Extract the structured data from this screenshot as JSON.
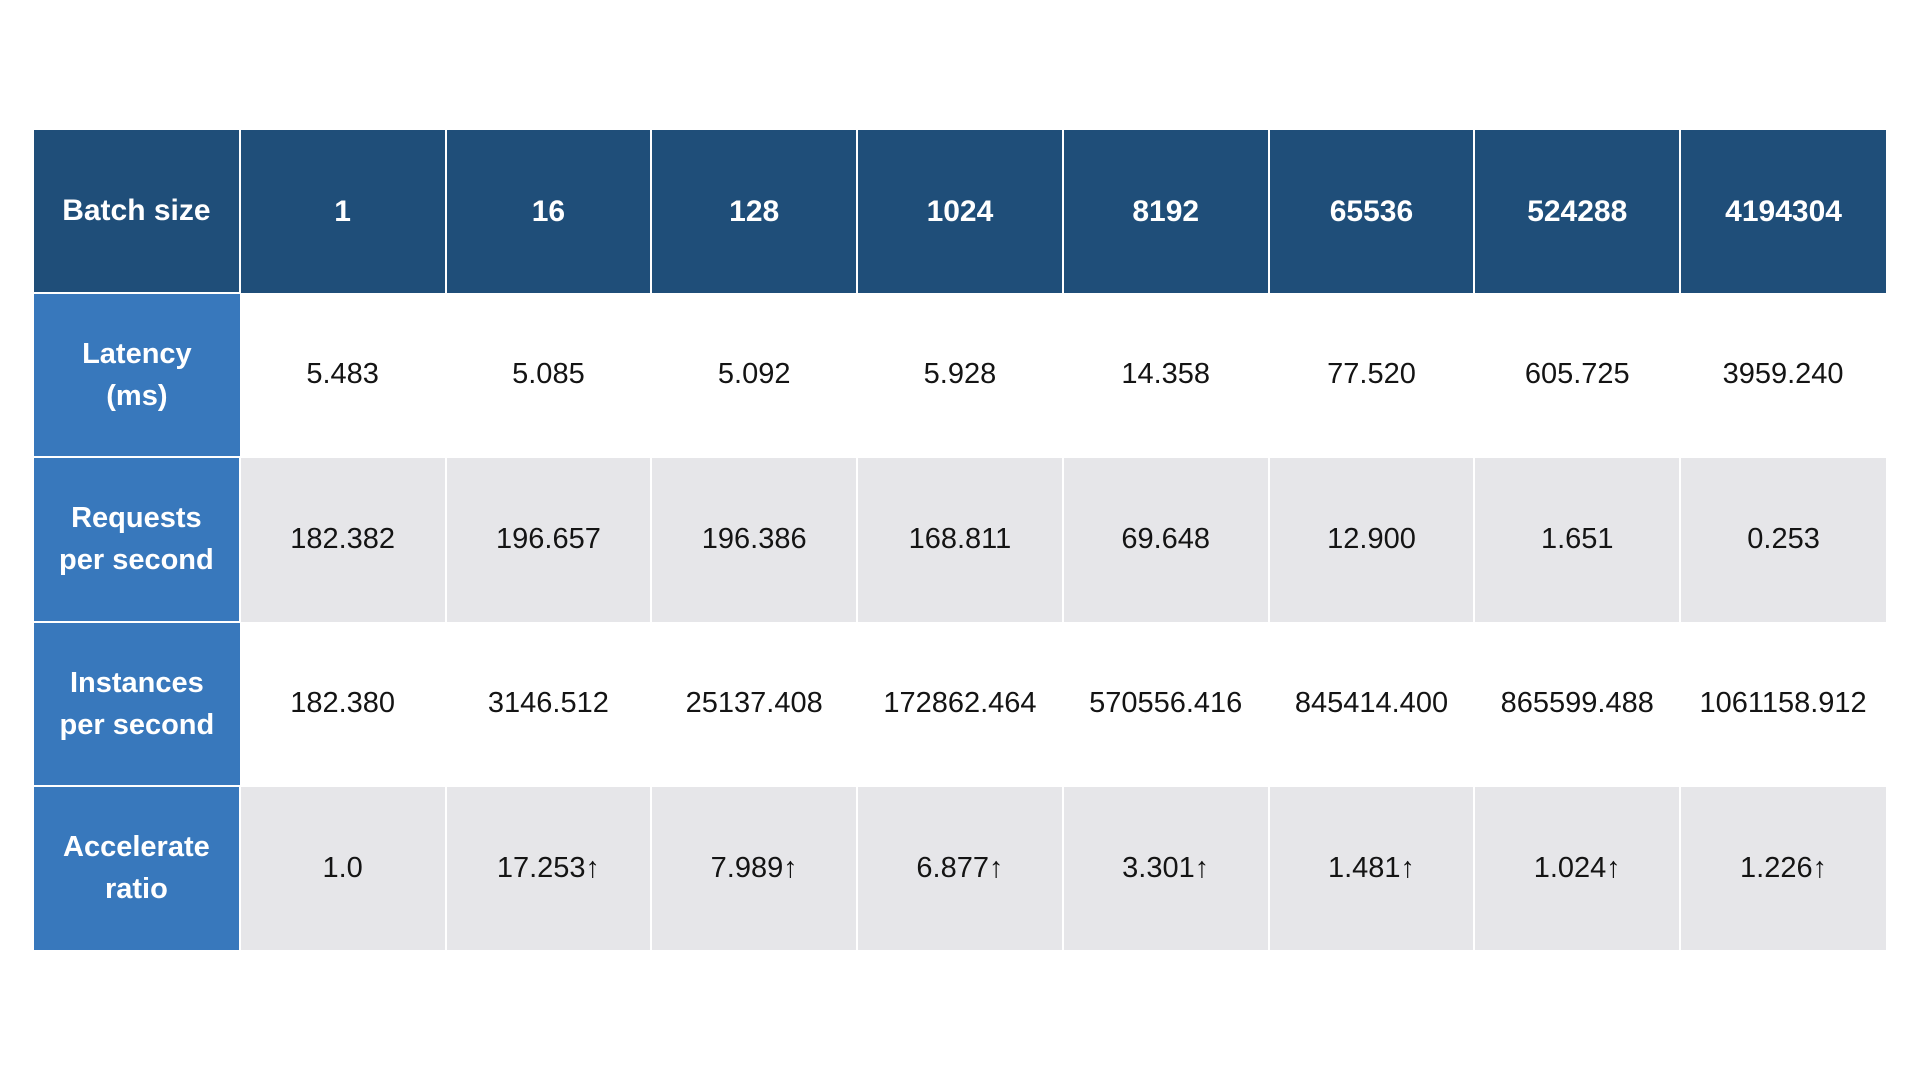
{
  "table": {
    "corner_label": "Batch size",
    "columns": [
      "1",
      "16",
      "128",
      "1024",
      "8192",
      "65536",
      "524288",
      "4194304"
    ],
    "rows": [
      {
        "label": "Latency\n(ms)",
        "values": [
          "5.483",
          "5.085",
          "5.092",
          "5.928",
          "14.358",
          "77.520",
          "605.725",
          "3959.240"
        ]
      },
      {
        "label": "Requests\nper second",
        "values": [
          "182.382",
          "196.657",
          "196.386",
          "168.811",
          "69.648",
          "12.900",
          "1.651",
          "0.253"
        ]
      },
      {
        "label": "Instances\nper second",
        "values": [
          "182.380",
          "3146.512",
          "25137.408",
          "172862.464",
          "570556.416",
          "845414.400",
          "865599.488",
          "1061158.912"
        ]
      },
      {
        "label": "Accelerate\nratio",
        "values": [
          "1.0",
          "17.253↑",
          "7.989↑",
          "6.877↑",
          "3.301↑",
          "1.481↑",
          "1.024↑",
          "1.226↑"
        ]
      }
    ],
    "colors": {
      "page_bg": "#FFFFFF",
      "header_bg": "#1F4E79",
      "row_label_bg": "#3878BC",
      "stripe_bg": "#E6E6E9",
      "white_bg": "#FFFFFF",
      "header_text": "#FFFFFF",
      "data_text": "#141414"
    }
  },
  "chart_data": {
    "type": "table",
    "title": "",
    "xlabel": "Batch size",
    "categories": [
      1,
      16,
      128,
      1024,
      8192,
      65536,
      524288,
      4194304
    ],
    "series": [
      {
        "name": "Latency (ms)",
        "values": [
          5.483,
          5.085,
          5.092,
          5.928,
          14.358,
          77.52,
          605.725,
          3959.24
        ]
      },
      {
        "name": "Requests per second",
        "values": [
          182.382,
          196.657,
          196.386,
          168.811,
          69.648,
          12.9,
          1.651,
          0.253
        ]
      },
      {
        "name": "Instances per second",
        "values": [
          182.38,
          3146.512,
          25137.408,
          172862.464,
          570556.416,
          845414.4,
          865599.488,
          1061158.912
        ]
      },
      {
        "name": "Accelerate ratio",
        "values": [
          1.0,
          17.253,
          7.989,
          6.877,
          3.301,
          1.481,
          1.024,
          1.226
        ]
      }
    ],
    "annotations": "Accelerate ratio cells except batch size 1 carry an up arrow (↑); rows alternate white and light-gray backgrounds"
  }
}
